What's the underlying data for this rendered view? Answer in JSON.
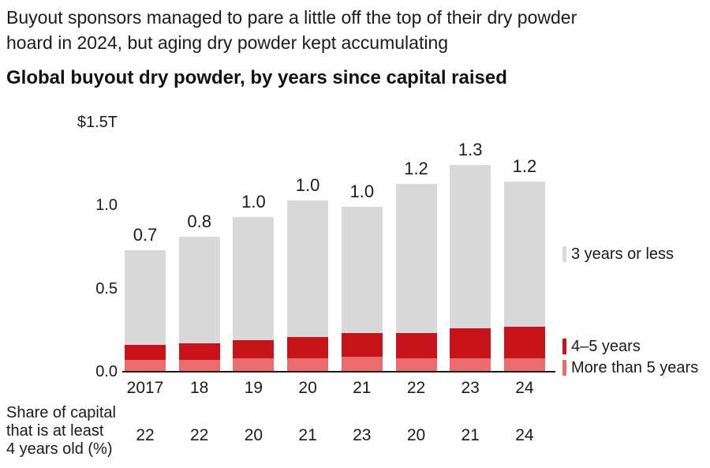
{
  "header": {
    "line1": "Buyout sponsors managed to pare a little off the top of their dry powder",
    "line2": "hoard in 2024, but aging dry powder kept accumulating",
    "chart_title": "Global buyout dry powder, by years since capital raised"
  },
  "chart_data": {
    "type": "bar",
    "stacked": true,
    "title": "Global buyout dry powder, by years since capital raised",
    "categories": [
      "2017",
      "18",
      "19",
      "20",
      "21",
      "22",
      "23",
      "24"
    ],
    "series": [
      {
        "name": "More than 5 years",
        "color": "#ec6b6c",
        "values": [
          0.07,
          0.07,
          0.08,
          0.08,
          0.09,
          0.08,
          0.08,
          0.08
        ]
      },
      {
        "name": "4–5 years",
        "color": "#c6141a",
        "values": [
          0.09,
          0.1,
          0.11,
          0.13,
          0.14,
          0.15,
          0.18,
          0.19
        ]
      },
      {
        "name": "3 years or less",
        "color": "#d9d9d9",
        "values": [
          0.57,
          0.64,
          0.74,
          0.82,
          0.76,
          0.9,
          0.98,
          0.87
        ]
      }
    ],
    "bar_totals_labels": [
      "0.7",
      "0.8",
      "1.0",
      "1.0",
      "1.0",
      "1.2",
      "1.3",
      "1.2"
    ],
    "y_axis_ticks": [
      "$1.5T",
      "1.0",
      "0.5",
      "0.0"
    ],
    "ylim": [
      0,
      1.5
    ],
    "unit": "trillions of US dollars",
    "grid": false,
    "legend_position": "right"
  },
  "footer": {
    "label_lines": [
      "Share of capital",
      "that is at least",
      "4 years old (%)"
    ],
    "values": [
      "22",
      "22",
      "20",
      "21",
      "23",
      "20",
      "21",
      "24"
    ]
  }
}
